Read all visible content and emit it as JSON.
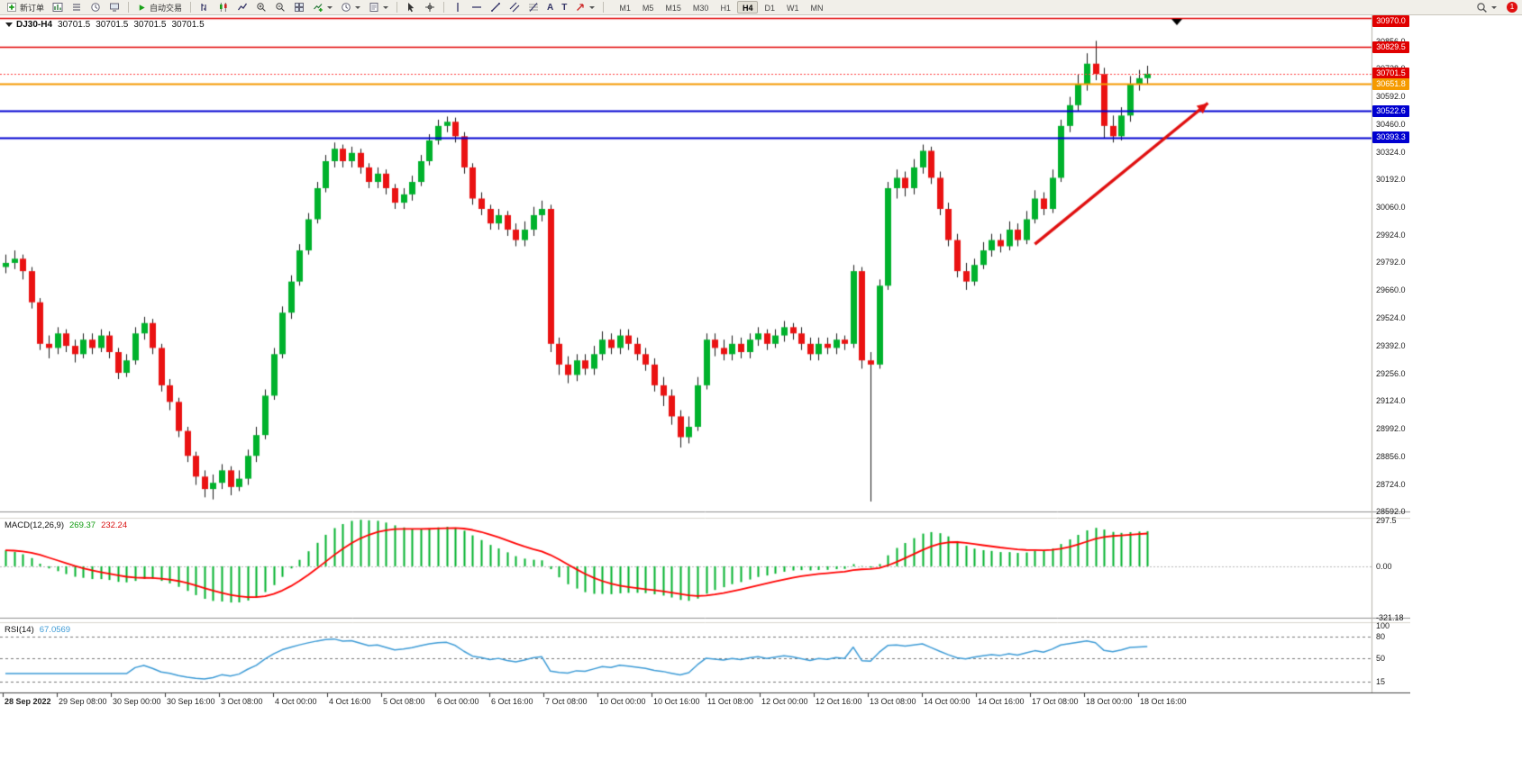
{
  "toolbar": {
    "new_order": "新订单",
    "autotrade": "自动交易",
    "text_tool_a": "A",
    "text_tool_t": "T",
    "timeframes": [
      "M1",
      "M5",
      "M15",
      "M30",
      "H1",
      "H4",
      "D1",
      "W1",
      "MN"
    ],
    "active_timeframe": "H4",
    "notification_badge": "1"
  },
  "chart_header": {
    "symbol_period": "DJ30-H4",
    "open": "30701.5",
    "high": "30701.5",
    "low": "30701.5",
    "close": "30701.5"
  },
  "price_axis": {
    "ticks": [
      "30856.0",
      "30728.0",
      "30592.0",
      "30460.0",
      "30324.0",
      "30192.0",
      "30060.0",
      "29924.0",
      "29792.0",
      "29660.0",
      "29524.0",
      "29392.0",
      "29256.0",
      "29124.0",
      "28992.0",
      "28856.0",
      "28724.0",
      "28592.0"
    ],
    "badges": [
      {
        "label": "30970.0",
        "price": 30970.0,
        "color": "#e00000"
      },
      {
        "label": "30829.5",
        "price": 30829.5,
        "color": "#e00000"
      },
      {
        "label": "30701.5",
        "price": 30701.5,
        "color": "#e00000"
      },
      {
        "label": "30651.8",
        "price": 30651.8,
        "color": "#f59a00"
      },
      {
        "label": "30522.6",
        "price": 30522.6,
        "color": "#0000d0"
      },
      {
        "label": "30393.3",
        "price": 30393.3,
        "color": "#0000d0"
      }
    ]
  },
  "macd_panel": {
    "title": "MACD(12,26,9)",
    "value_main": "269.37",
    "value_signal": "232.24",
    "ylim": [
      -321.18,
      297.5
    ],
    "ticks": [
      {
        "label": "297.5",
        "value": 297.5
      },
      {
        "label": "0.00",
        "value": 0
      },
      {
        "label": "-321.18",
        "value": -321.18
      }
    ]
  },
  "rsi_panel": {
    "title": "RSI(14)",
    "value": "67.0569",
    "levels": [
      80,
      50,
      15
    ],
    "ticks": [
      {
        "label": "100",
        "value": 100
      },
      {
        "label": "80",
        "value": 80
      },
      {
        "label": "50",
        "value": 50
      },
      {
        "label": "15",
        "value": 15
      }
    ]
  },
  "chart_data": {
    "type": "candlestick",
    "title": "DJ30 H4",
    "symbol": "DJ30",
    "timeframe": "H4",
    "ylim": [
      28592,
      30970
    ],
    "x_labels": [
      "28 Sep 2022",
      "29 Sep 08:00",
      "30 Sep 00:00",
      "30 Sep 16:00",
      "3 Oct 08:00",
      "4 Oct 00:00",
      "4 Oct 16:00",
      "5 Oct 08:00",
      "6 Oct 00:00",
      "6 Oct 16:00",
      "7 Oct 08:00",
      "10 Oct 00:00",
      "10 Oct 16:00",
      "11 Oct 08:00",
      "12 Oct 00:00",
      "12 Oct 16:00",
      "13 Oct 08:00",
      "14 Oct 00:00",
      "14 Oct 16:00",
      "17 Oct 08:00",
      "18 Oct 00:00",
      "18 Oct 16:00"
    ],
    "ohlc": [
      [
        29770,
        29830,
        29740,
        29790
      ],
      [
        29790,
        29850,
        29760,
        29810
      ],
      [
        29810,
        29830,
        29710,
        29750
      ],
      [
        29750,
        29770,
        29570,
        29600
      ],
      [
        29600,
        29620,
        29370,
        29400
      ],
      [
        29400,
        29440,
        29330,
        29380
      ],
      [
        29380,
        29480,
        29350,
        29450
      ],
      [
        29450,
        29470,
        29360,
        29390
      ],
      [
        29390,
        29420,
        29310,
        29350
      ],
      [
        29350,
        29450,
        29330,
        29420
      ],
      [
        29420,
        29450,
        29350,
        29380
      ],
      [
        29380,
        29470,
        29360,
        29440
      ],
      [
        29440,
        29460,
        29330,
        29360
      ],
      [
        29360,
        29380,
        29230,
        29260
      ],
      [
        29260,
        29350,
        29240,
        29320
      ],
      [
        29320,
        29480,
        29300,
        29450
      ],
      [
        29450,
        29530,
        29420,
        29500
      ],
      [
        29500,
        29520,
        29350,
        29380
      ],
      [
        29380,
        29400,
        29170,
        29200
      ],
      [
        29200,
        29230,
        29080,
        29120
      ],
      [
        29120,
        29140,
        28950,
        28980
      ],
      [
        28980,
        29000,
        28830,
        28860
      ],
      [
        28860,
        28880,
        28720,
        28760
      ],
      [
        28760,
        28790,
        28660,
        28700
      ],
      [
        28700,
        28770,
        28650,
        28730
      ],
      [
        28730,
        28820,
        28700,
        28790
      ],
      [
        28790,
        28810,
        28670,
        28710
      ],
      [
        28710,
        28790,
        28690,
        28750
      ],
      [
        28750,
        28890,
        28720,
        28860
      ],
      [
        28860,
        29000,
        28830,
        28960
      ],
      [
        28960,
        29180,
        28940,
        29150
      ],
      [
        29150,
        29380,
        29130,
        29350
      ],
      [
        29350,
        29580,
        29330,
        29550
      ],
      [
        29550,
        29730,
        29520,
        29700
      ],
      [
        29700,
        29880,
        29680,
        29850
      ],
      [
        29850,
        30030,
        29830,
        30000
      ],
      [
        30000,
        30180,
        29980,
        30150
      ],
      [
        30150,
        30310,
        30130,
        30280
      ],
      [
        30280,
        30370,
        30250,
        30340
      ],
      [
        30340,
        30360,
        30250,
        30280
      ],
      [
        30280,
        30350,
        30250,
        30320
      ],
      [
        30320,
        30340,
        30220,
        30250
      ],
      [
        30250,
        30270,
        30150,
        30180
      ],
      [
        30180,
        30250,
        30150,
        30220
      ],
      [
        30220,
        30240,
        30120,
        30150
      ],
      [
        30150,
        30170,
        30050,
        30080
      ],
      [
        30080,
        30150,
        30050,
        30120
      ],
      [
        30120,
        30210,
        30090,
        30180
      ],
      [
        30180,
        30310,
        30160,
        30280
      ],
      [
        30280,
        30410,
        30260,
        30380
      ],
      [
        30380,
        30480,
        30360,
        30450
      ],
      [
        30450,
        30495,
        30420,
        30470
      ],
      [
        30470,
        30490,
        30370,
        30400
      ],
      [
        30400,
        30420,
        30220,
        30250
      ],
      [
        30250,
        30270,
        30070,
        30100
      ],
      [
        30100,
        30130,
        30020,
        30050
      ],
      [
        30050,
        30070,
        29950,
        29980
      ],
      [
        29980,
        30050,
        29950,
        30020
      ],
      [
        30020,
        30040,
        29920,
        29950
      ],
      [
        29950,
        29980,
        29870,
        29900
      ],
      [
        29900,
        29990,
        29870,
        29950
      ],
      [
        29950,
        30060,
        29920,
        30020
      ],
      [
        30020,
        30090,
        29990,
        30050
      ],
      [
        30050,
        30070,
        29360,
        29400
      ],
      [
        29400,
        29430,
        29250,
        29300
      ],
      [
        29300,
        29340,
        29210,
        29250
      ],
      [
        29250,
        29350,
        29220,
        29320
      ],
      [
        29320,
        29350,
        29250,
        29280
      ],
      [
        29280,
        29390,
        29250,
        29350
      ],
      [
        29350,
        29460,
        29320,
        29420
      ],
      [
        29420,
        29450,
        29350,
        29380
      ],
      [
        29380,
        29470,
        29350,
        29440
      ],
      [
        29440,
        29470,
        29370,
        29400
      ],
      [
        29400,
        29430,
        29320,
        29350
      ],
      [
        29350,
        29380,
        29270,
        29300
      ],
      [
        29300,
        29330,
        29170,
        29200
      ],
      [
        29200,
        29240,
        29100,
        29150
      ],
      [
        29150,
        29180,
        29010,
        29050
      ],
      [
        29050,
        29080,
        28900,
        28950
      ],
      [
        28950,
        29050,
        28920,
        29000
      ],
      [
        29000,
        29240,
        28980,
        29200
      ],
      [
        29200,
        29450,
        29180,
        29420
      ],
      [
        29420,
        29450,
        29340,
        29380
      ],
      [
        29380,
        29420,
        29320,
        29350
      ],
      [
        29350,
        29440,
        29320,
        29400
      ],
      [
        29400,
        29430,
        29330,
        29360
      ],
      [
        29360,
        29450,
        29330,
        29420
      ],
      [
        29420,
        29480,
        29390,
        29450
      ],
      [
        29450,
        29470,
        29370,
        29400
      ],
      [
        29400,
        29470,
        29380,
        29440
      ],
      [
        29440,
        29510,
        29410,
        29480
      ],
      [
        29480,
        29500,
        29420,
        29450
      ],
      [
        29450,
        29480,
        29370,
        29400
      ],
      [
        29400,
        29430,
        29320,
        29350
      ],
      [
        29350,
        29430,
        29320,
        29400
      ],
      [
        29400,
        29430,
        29350,
        29380
      ],
      [
        29380,
        29450,
        29350,
        29420
      ],
      [
        29420,
        29440,
        29370,
        29400
      ],
      [
        29400,
        29780,
        29380,
        29750
      ],
      [
        29750,
        29770,
        29280,
        29320
      ],
      [
        29320,
        29360,
        28640,
        29300
      ],
      [
        29300,
        29710,
        29280,
        29680
      ],
      [
        29680,
        30180,
        29660,
        30150
      ],
      [
        30150,
        30240,
        30100,
        30200
      ],
      [
        30200,
        30230,
        30110,
        30150
      ],
      [
        30150,
        30290,
        30120,
        30250
      ],
      [
        30250,
        30360,
        30220,
        30330
      ],
      [
        30330,
        30350,
        30170,
        30200
      ],
      [
        30200,
        30230,
        30020,
        30050
      ],
      [
        30050,
        30080,
        29870,
        29900
      ],
      [
        29900,
        29930,
        29720,
        29750
      ],
      [
        29750,
        29790,
        29660,
        29700
      ],
      [
        29700,
        29810,
        29680,
        29780
      ],
      [
        29780,
        29890,
        29760,
        29850
      ],
      [
        29850,
        29930,
        29820,
        29900
      ],
      [
        29900,
        29930,
        29840,
        29870
      ],
      [
        29870,
        29990,
        29850,
        29950
      ],
      [
        29950,
        29980,
        29870,
        29900
      ],
      [
        29900,
        30040,
        29880,
        30000
      ],
      [
        30000,
        30140,
        29980,
        30100
      ],
      [
        30100,
        30130,
        30020,
        30050
      ],
      [
        30050,
        30240,
        30030,
        30200
      ],
      [
        30200,
        30480,
        30180,
        30450
      ],
      [
        30450,
        30590,
        30420,
        30550
      ],
      [
        30550,
        30700,
        30520,
        30650
      ],
      [
        30650,
        30800,
        30620,
        30750
      ],
      [
        30750,
        30860,
        30670,
        30700
      ],
      [
        30700,
        30730,
        30390,
        30450
      ],
      [
        30450,
        30500,
        30370,
        30400
      ],
      [
        30400,
        30540,
        30380,
        30500
      ],
      [
        30500,
        30690,
        30470,
        30650
      ],
      [
        30650,
        30720,
        30620,
        30680
      ],
      [
        30680,
        30740,
        30650,
        30701.5
      ]
    ],
    "hlines": [
      {
        "price": 30970.0,
        "color": "#e00000",
        "style": "solid",
        "width": 1.6
      },
      {
        "price": 30829.5,
        "color": "#e00000",
        "style": "solid",
        "width": 1.6
      },
      {
        "price": 30701.5,
        "color": "#ff4040",
        "style": "dotted",
        "width": 1
      },
      {
        "price": 30651.8,
        "color": "#f59a00",
        "style": "solid",
        "width": 2
      },
      {
        "price": 30522.6,
        "color": "#0000d0",
        "style": "solid",
        "width": 1.8
      },
      {
        "price": 30393.3,
        "color": "#0000d0",
        "style": "solid",
        "width": 1.8
      }
    ],
    "trend_arrow": {
      "from_bar": 119,
      "from_price": 29880,
      "to_bar": 139,
      "to_price": 30560,
      "color": "#e01010"
    },
    "indicators": {
      "macd": {
        "fast": 12,
        "slow": 26,
        "signal": 9
      },
      "rsi": {
        "period": 14
      }
    },
    "colors": {
      "up": "#00b22c",
      "down": "#ea1212",
      "wick": "#1a1a1a",
      "macd_hist": "#00b22c",
      "macd_signal": "#ff0000",
      "rsi_line": "#3d9bd6"
    }
  }
}
